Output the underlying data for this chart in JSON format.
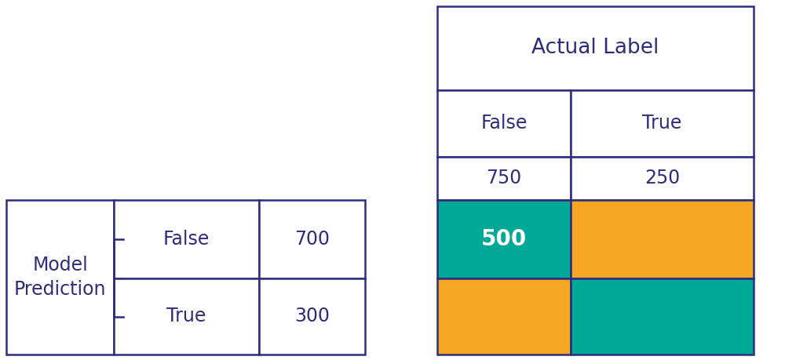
{
  "border_color": "#2d2d7f",
  "teal_color": "#00a896",
  "orange_color": "#f5a623",
  "white_color": "#ffffff",
  "bg_color": "#ffffff",
  "text_color": "#2d2d7f",
  "text_color_white": "#ffffff",
  "actual_label_text": "Actual Label",
  "model_prediction_text": "Model\nPrediction",
  "false_label": "False",
  "true_label": "True",
  "col_false_total": "750",
  "col_true_total": "250",
  "row_false_total": "700",
  "row_true_total": "300",
  "tn_value": "500",
  "font_size_title": 19,
  "font_size_cell": 17,
  "font_size_tn": 20,
  "line_width": 1.8,
  "fig_width": 10.0,
  "fig_height": 4.59,
  "dpi": 100
}
